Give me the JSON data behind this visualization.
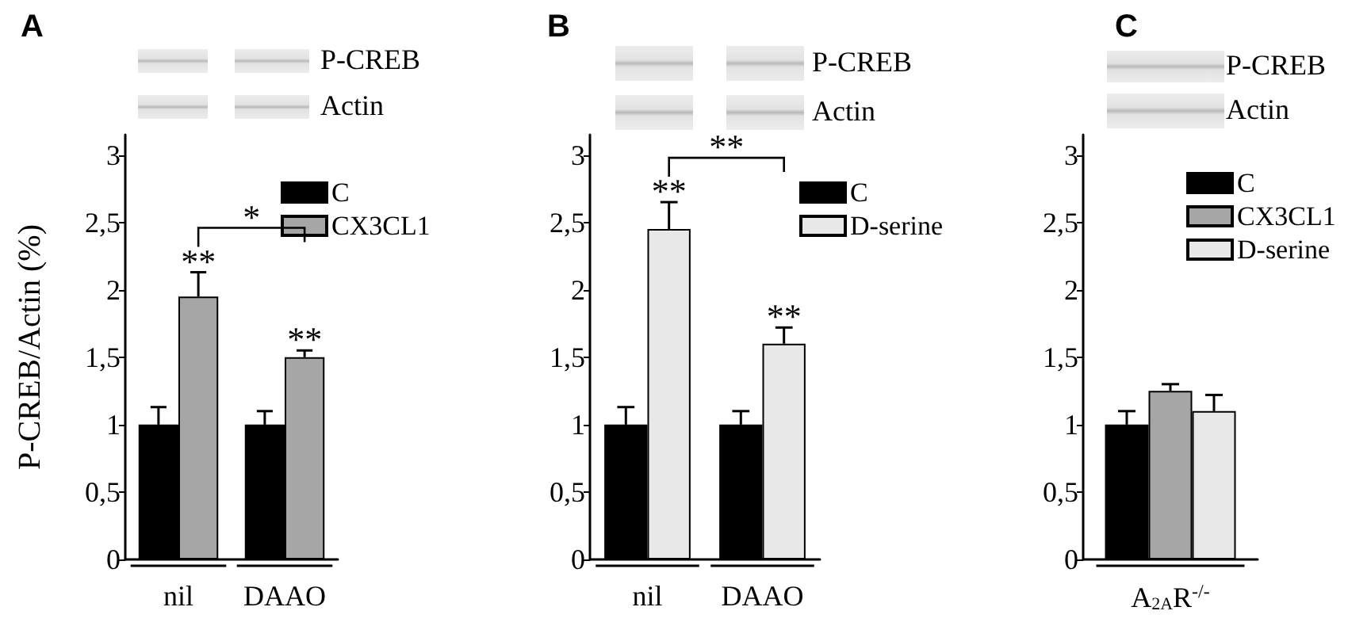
{
  "chart_data": [
    {
      "type": "bar",
      "title": "A",
      "ylabel": "P-CREB/Actin (%)",
      "categories": [
        "nil",
        "DAAO"
      ],
      "series": [
        {
          "name": "C",
          "color": "#000000",
          "values": [
            1.0,
            1.0
          ],
          "errors": [
            0.13,
            0.1
          ]
        },
        {
          "name": "CX3CL1",
          "color": "#a6a6a6",
          "values": [
            1.95,
            1.5
          ],
          "errors": [
            0.18,
            0.05
          ]
        }
      ],
      "ylim": [
        0,
        3.15
      ],
      "yticks": [
        0,
        {
          "value": 0.5,
          "label": "0,5"
        },
        1,
        {
          "value": 1.5,
          "label": "1,5"
        },
        2,
        {
          "value": 2.5,
          "label": "2,5"
        },
        3
      ],
      "legend": "top right",
      "annotations": [
        "P-CREB",
        "Actin",
        "**",
        "**",
        "*"
      ]
    },
    {
      "type": "bar",
      "title": "B",
      "categories": [
        "nil",
        "DAAO"
      ],
      "series": [
        {
          "name": "C",
          "color": "#000000",
          "values": [
            1.0,
            1.0
          ],
          "errors": [
            0.13,
            0.1
          ]
        },
        {
          "name": "D-serine",
          "color": "#e8e8e8",
          "values": [
            2.45,
            1.6
          ],
          "errors": [
            0.2,
            0.12
          ]
        }
      ],
      "ylim": [
        0,
        3.15
      ],
      "yticks": [
        0,
        {
          "value": 0.5,
          "label": "0,5"
        },
        1,
        {
          "value": 1.5,
          "label": "1,5"
        },
        2,
        {
          "value": 2.5,
          "label": "2,5"
        },
        3
      ],
      "legend": "top right",
      "annotations": [
        "P-CREB",
        "Actin",
        "**",
        "**",
        "**"
      ]
    },
    {
      "type": "bar",
      "title": "C",
      "categories": [
        "A$_{2A}$R$^{-/-}$"
      ],
      "series": [
        {
          "name": "C",
          "color": "#000000",
          "values": [
            1.0
          ],
          "errors": [
            0.1
          ]
        },
        {
          "name": "CX3CL1",
          "color": "#a6a6a6",
          "values": [
            1.25
          ],
          "errors": [
            0.05
          ]
        },
        {
          "name": "D-serine",
          "color": "#e8e8e8",
          "values": [
            1.1
          ],
          "errors": [
            0.12
          ]
        }
      ],
      "ylim": [
        0,
        3.15
      ],
      "yticks": [
        0,
        {
          "value": 0.5,
          "label": "0,5"
        },
        1,
        {
          "value": 1.5,
          "label": "1,5"
        },
        2,
        {
          "value": 2.5,
          "label": "2,5"
        },
        3
      ],
      "legend": "top right",
      "annotations": [
        "P-CREB",
        "Actin"
      ]
    }
  ]
}
